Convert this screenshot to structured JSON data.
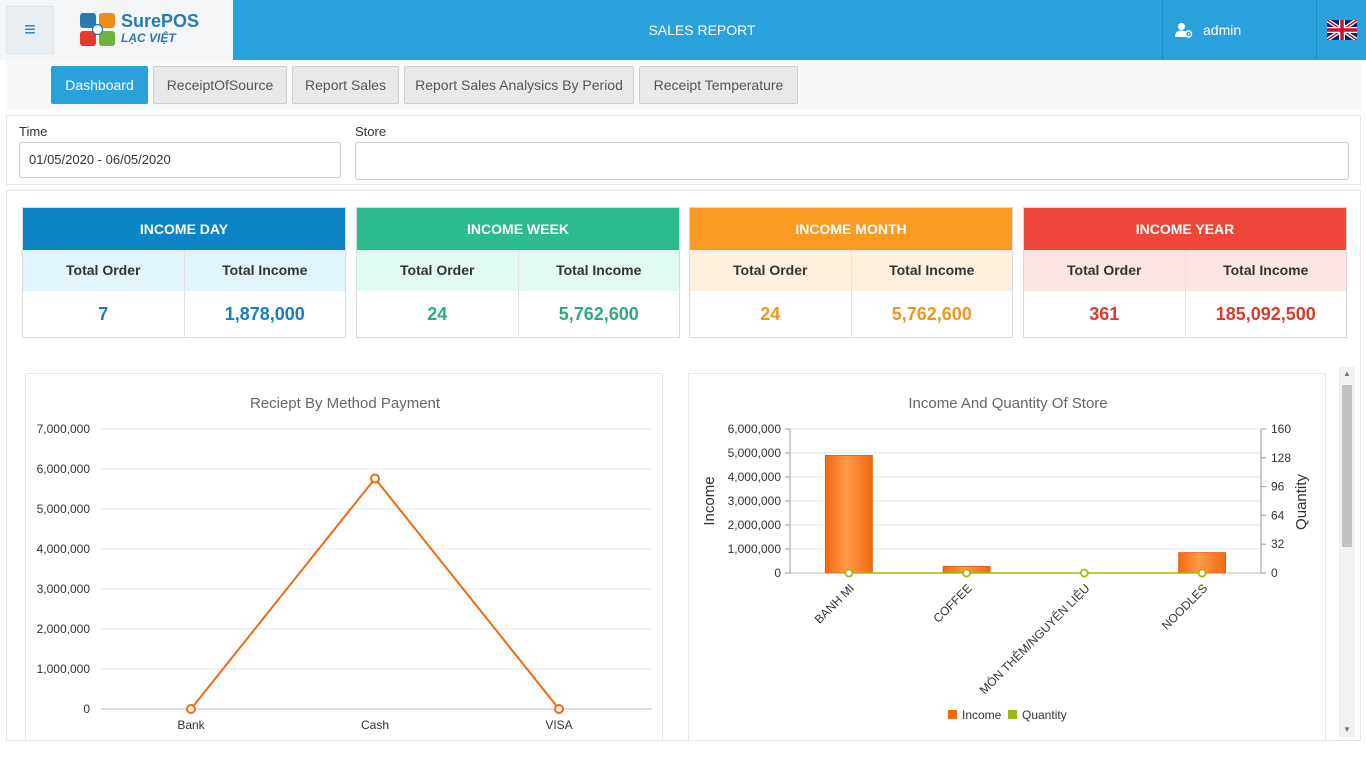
{
  "header": {
    "logo_name": "SurePOS",
    "logo_sub": "LẠC VIỆT",
    "title": "SALES REPORT",
    "user": "admin",
    "language_icon": "uk-flag-icon"
  },
  "tabs": [
    {
      "label": "Dashboard",
      "active": true
    },
    {
      "label": "ReceiptOfSource",
      "active": false
    },
    {
      "label": "Report Sales",
      "active": false
    },
    {
      "label": "Report Sales Analysics By Period",
      "active": false
    },
    {
      "label": "Receipt Temperature",
      "active": false
    }
  ],
  "filters": {
    "time_label": "Time",
    "time_value": "01/05/2020 - 06/05/2020",
    "store_label": "Store",
    "store_value": ""
  },
  "cards": [
    {
      "title": "INCOME DAY",
      "order_label": "Total Order",
      "income_label": "Total Income",
      "orders": "7",
      "income": "1,878,000",
      "head_color": "#0c85c7",
      "sub_color": "#e1f3fd",
      "value_color": "#1180c4"
    },
    {
      "title": "INCOME WEEK",
      "order_label": "Total Order",
      "income_label": "Total Income",
      "orders": "24",
      "income": "5,762,600",
      "head_color": "#2dba8f",
      "sub_color": "#e0f9f1",
      "value_color": "#2bab84"
    },
    {
      "title": "INCOME MONTH",
      "order_label": "Total Order",
      "income_label": "Total Income",
      "orders": "24",
      "income": "5,762,600",
      "head_color": "#fa9a22",
      "sub_color": "#fef0dc",
      "value_color": "#f4941e"
    },
    {
      "title": "INCOME YEAR",
      "order_label": "Total Order",
      "income_label": "Total Income",
      "orders": "361",
      "income": "185,092,500",
      "head_color": "#ef463a",
      "sub_color": "#fde5e3",
      "value_color": "#e0392e"
    }
  ],
  "chart_data": [
    {
      "type": "line",
      "title": "Reciept By Method Payment",
      "categories": [
        "Bank",
        "Cash",
        "VISA"
      ],
      "values": [
        0,
        5762600,
        0
      ],
      "ylim": [
        0,
        7000000
      ],
      "yticks": [
        0,
        1000000,
        2000000,
        3000000,
        4000000,
        5000000,
        6000000,
        7000000
      ],
      "ytick_labels": [
        "0",
        "1,000,000",
        "2,000,000",
        "3,000,000",
        "4,000,000",
        "5,000,000",
        "6,000,000",
        "7,000,000"
      ],
      "color": "#f26a0f",
      "grid": true
    },
    {
      "type": "bar",
      "title": "Income And Quantity Of Store",
      "categories": [
        "BANH MI",
        "COFFEE",
        "MÓN THÊM/NGUYÊN LIỆU",
        "NOODLES"
      ],
      "ylabel": "Income",
      "y2label": "Quantity",
      "ylim": [
        0,
        6000000
      ],
      "yticks": [
        0,
        1000000,
        2000000,
        3000000,
        4000000,
        5000000,
        6000000
      ],
      "ytick_labels": [
        "0",
        "1,000,000",
        "2,000,000",
        "3,000,000",
        "4,000,000",
        "5,000,000",
        "6,000,000"
      ],
      "y2lim": [
        0,
        160
      ],
      "y2ticks": [
        0,
        32,
        64,
        96,
        128,
        160
      ],
      "y2tick_labels": [
        "0",
        "32",
        "64",
        "96",
        "128",
        "160"
      ],
      "series": [
        {
          "name": "Income",
          "type": "bar",
          "color": "#f26a0f",
          "values": [
            4900000,
            280000,
            0,
            850000
          ]
        },
        {
          "name": "Quantity",
          "type": "line",
          "color": "#9fb814",
          "values": [
            0,
            0,
            0,
            0
          ]
        }
      ],
      "legend": "bottom"
    }
  ]
}
